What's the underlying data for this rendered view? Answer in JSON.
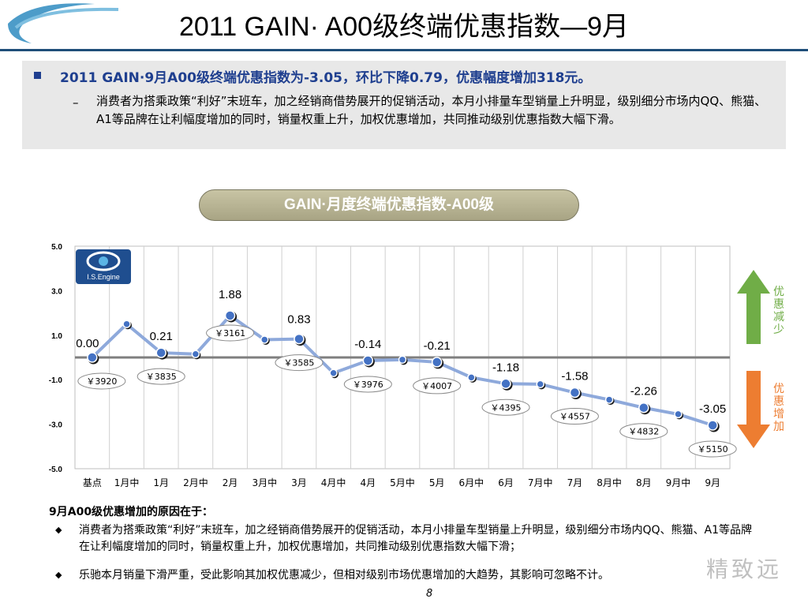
{
  "slide": {
    "title": "2011 GAIN· A00级终端优惠指数—9月",
    "page_number": "8",
    "watermark": "精致远"
  },
  "summary": {
    "headline": "2011 GAIN·9月A00级终端优惠指数为-3.05，环比下降0.79，优惠幅度增加318元。",
    "body": "消费者为搭乘政策“利好”末班车，加之经销商借势展开的促销活动，本月小排量车型销量上升明显，级别细分市场内QQ、熊猫、A1等品牌在让利幅度增加的同时，销量权重上升，加权优惠增加，共同推动级别优惠指数大幅下滑。"
  },
  "chart_banner": "GAIN·月度终端优惠指数-A00级",
  "logo_text": "I.S.Engine",
  "side_labels": {
    "top": [
      "优",
      "惠",
      "减",
      "少"
    ],
    "bottom": [
      "优",
      "惠",
      "增",
      "加"
    ]
  },
  "colors": {
    "line": "#8ea9db",
    "axis_zero": "#7f7f7f",
    "title_rule": "#1f4e79",
    "arrow_up": "#70ad47",
    "arrow_down": "#ed7d31"
  },
  "chart_data": {
    "type": "line",
    "categories": [
      "基点",
      "1月中",
      "1月",
      "2月中",
      "2月",
      "3月中",
      "3月",
      "4月中",
      "4月",
      "5月中",
      "5月",
      "6月中",
      "6月",
      "7月中",
      "7月",
      "8月中",
      "8月",
      "9月中",
      "9月"
    ],
    "values": [
      0.0,
      1.5,
      0.21,
      0.15,
      1.88,
      0.8,
      0.83,
      -0.7,
      -0.14,
      -0.1,
      -0.21,
      -0.9,
      -1.18,
      -1.2,
      -1.58,
      -1.9,
      -2.26,
      -2.55,
      -3.05
    ],
    "month_end_labels": {
      "0": "0.00",
      "2": "0.21",
      "4": "1.88",
      "6": "0.83",
      "8": "-0.14",
      "10": "-0.21",
      "12": "-1.18",
      "14": "-1.58",
      "16": "-2.26",
      "18": "-3.05"
    },
    "price_callouts": [
      {
        "index": 0,
        "text": "￥3920"
      },
      {
        "index": 2,
        "text": "￥3835"
      },
      {
        "index": 4,
        "text": "￥3161"
      },
      {
        "index": 6,
        "text": "￥3585"
      },
      {
        "index": 8,
        "text": "￥3976"
      },
      {
        "index": 10,
        "text": "￥4007"
      },
      {
        "index": 12,
        "text": "￥4395"
      },
      {
        "index": 14,
        "text": "￥4557"
      },
      {
        "index": 16,
        "text": "￥4832"
      },
      {
        "index": 18,
        "text": "￥5150"
      }
    ],
    "yticks": [
      "5.0",
      "3.0",
      "1.0",
      "-1.0",
      "-3.0",
      "-5.0"
    ],
    "ylim": [
      -5,
      5
    ],
    "grid": "vertical",
    "legend": "none"
  },
  "reasons": {
    "heading": "9月A00级优惠增加的原因在于：",
    "items": [
      "消费者为搭乘政策“利好”末班车，加之经销商借势展开的促销活动，本月小排量车型销量上升明显，级别细分市场内QQ、熊猫、A1等品牌在让利幅度增加的同时，销量权重上升，加权优惠增加，共同推动级别优惠指数大幅下滑；",
      "乐驰本月销量下滑严重，受此影响其加权优惠减少，但相对级别市场优惠增加的大趋势，其影响可忽略不计。"
    ]
  }
}
